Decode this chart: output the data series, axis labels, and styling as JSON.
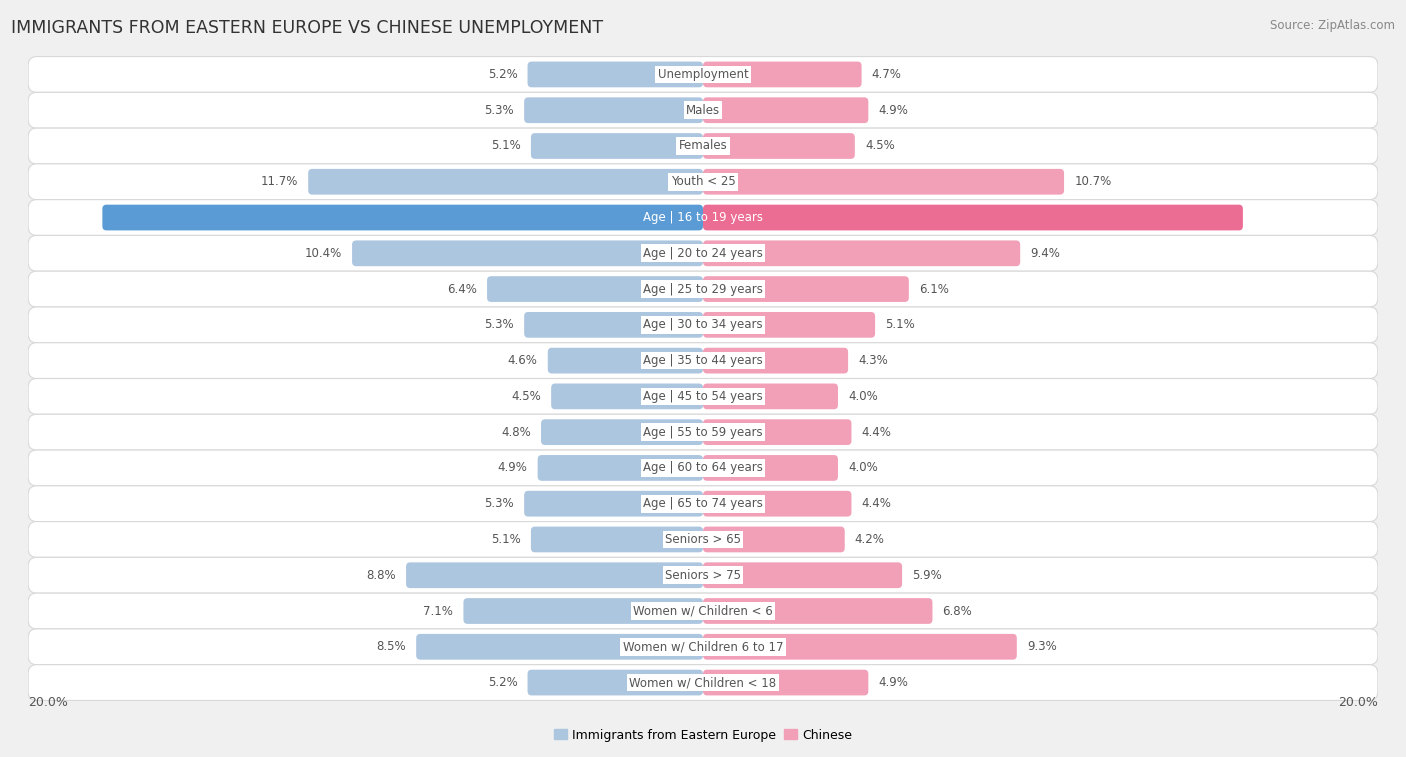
{
  "title": "IMMIGRANTS FROM EASTERN EUROPE VS CHINESE UNEMPLOYMENT",
  "source": "Source: ZipAtlas.com",
  "categories": [
    "Unemployment",
    "Males",
    "Females",
    "Youth < 25",
    "Age | 16 to 19 years",
    "Age | 20 to 24 years",
    "Age | 25 to 29 years",
    "Age | 30 to 34 years",
    "Age | 35 to 44 years",
    "Age | 45 to 54 years",
    "Age | 55 to 59 years",
    "Age | 60 to 64 years",
    "Age | 65 to 74 years",
    "Seniors > 65",
    "Seniors > 75",
    "Women w/ Children < 6",
    "Women w/ Children 6 to 17",
    "Women w/ Children < 18"
  ],
  "left_values": [
    5.2,
    5.3,
    5.1,
    11.7,
    17.8,
    10.4,
    6.4,
    5.3,
    4.6,
    4.5,
    4.8,
    4.9,
    5.3,
    5.1,
    8.8,
    7.1,
    8.5,
    5.2
  ],
  "right_values": [
    4.7,
    4.9,
    4.5,
    10.7,
    16.0,
    9.4,
    6.1,
    5.1,
    4.3,
    4.0,
    4.4,
    4.0,
    4.4,
    4.2,
    5.9,
    6.8,
    9.3,
    4.9
  ],
  "left_color": "#adc6e0",
  "right_color": "#f2a0b8",
  "highlight_left_color": "#5b9bd5",
  "highlight_right_color": "#ec6d94",
  "highlight_row": 4,
  "max_value": 20.0,
  "background_color": "#f0f0f0",
  "bar_background": "#ffffff",
  "title_fontsize": 12.5,
  "label_fontsize": 8.5,
  "value_fontsize": 8.5,
  "legend_fontsize": 9,
  "source_fontsize": 8.5,
  "axis_label_fontsize": 9,
  "left_legend": "Immigrants from Eastern Europe",
  "right_legend": "Chinese"
}
